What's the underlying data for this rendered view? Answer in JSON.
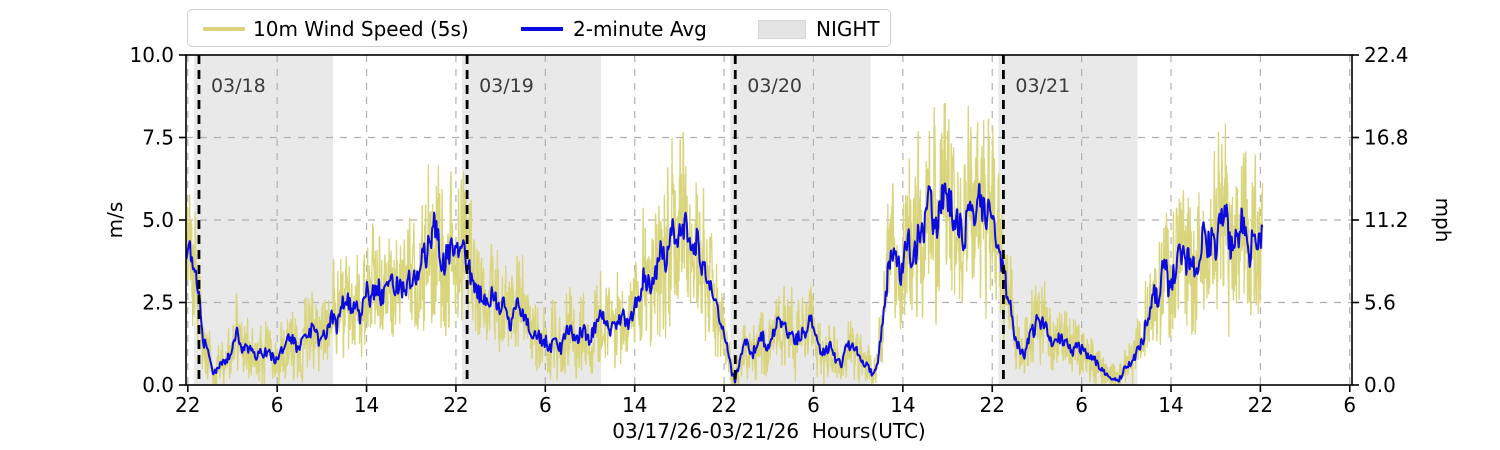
{
  "ui": {
    "legend": {
      "series_5s_label": "10m Wind Speed (5s)",
      "series_avg_label": "2-minute Avg",
      "night_label": "NIGHT"
    }
  },
  "colors": {
    "wind_5s": "#d9d57c",
    "wind_avg": "#0b0be0",
    "night_band": "#e9e9e9",
    "grid": "#b0b0b0",
    "day_line": "#000000",
    "day_label": "#3b3b3b",
    "frame": "#000000",
    "text": "#000000"
  },
  "chart_data": {
    "type": "line",
    "title": "",
    "xlabel": "03/17/26-03/21/26  Hours(UTC)",
    "ylabel_left": "m/s",
    "ylabel_right": "mph",
    "ylim_left": [
      0,
      10
    ],
    "ylim_right": [
      0,
      22.4
    ],
    "left_tick_values": [
      0.0,
      2.5,
      5.0,
      7.5,
      10.0
    ],
    "left_tick_labels": [
      "0.0",
      "2.5",
      "5.0",
      "7.5",
      "10.0"
    ],
    "right_tick_labels": [
      "0.0",
      "5.6",
      "11.2",
      "16.8",
      "22.4"
    ],
    "y_gridlines": [
      2.5,
      5.0,
      7.5
    ],
    "x_domain_hours": [
      -1.16,
      103.2
    ],
    "x_tick_start_hour": -1,
    "x_tick_step_hours": 8,
    "x_tick_labels": [
      "22",
      "6",
      "14",
      "22",
      "6",
      "14",
      "22",
      "6",
      "14",
      "22",
      "6",
      "14",
      "22",
      "6"
    ],
    "grid": true,
    "legend_position": "top-left-outside",
    "day_lines": [
      {
        "hour": 0,
        "label": "03/18"
      },
      {
        "hour": 24,
        "label": "03/19"
      },
      {
        "hour": 48,
        "label": "03/20"
      },
      {
        "hour": 72,
        "label": "03/21"
      }
    ],
    "night_bands_hours": [
      [
        -0.45,
        12.0
      ],
      [
        23.55,
        36.0
      ],
      [
        47.55,
        60.1
      ],
      [
        71.55,
        84.0
      ]
    ],
    "data_start_hour": -1.16,
    "data_end_hour": 95.2,
    "series": [
      {
        "name": "10m Wind Speed (5s)",
        "role": "gust-envelope-of-avg",
        "sample_step_hours": 0.013
      },
      {
        "name": "2-minute Avg",
        "role": "average",
        "sample_step_hours": 0.033
      }
    ],
    "avg_keyframes_hour_ms": [
      [
        -1.16,
        3.5
      ],
      [
        -1.0,
        3.9
      ],
      [
        -0.6,
        3.4
      ],
      [
        -0.3,
        3.0
      ],
      [
        0,
        2.5
      ],
      [
        0.4,
        1.6
      ],
      [
        0.8,
        1.0
      ],
      [
        1.3,
        0.55
      ],
      [
        1.8,
        0.4
      ],
      [
        2.3,
        0.75
      ],
      [
        2.8,
        0.95
      ],
      [
        3.4,
        1.35
      ],
      [
        3.8,
        1.0
      ],
      [
        4.3,
        1.3
      ],
      [
        4.8,
        1.15
      ],
      [
        5.3,
        0.8
      ],
      [
        5.8,
        0.95
      ],
      [
        6.3,
        1.1
      ],
      [
        6.8,
        0.85
      ],
      [
        7.3,
        1.05
      ],
      [
        7.8,
        1.2
      ],
      [
        8.3,
        1.3
      ],
      [
        8.8,
        1.1
      ],
      [
        9.3,
        1.3
      ],
      [
        9.8,
        1.45
      ],
      [
        10.3,
        1.6
      ],
      [
        10.8,
        1.5
      ],
      [
        11.4,
        1.75
      ],
      [
        12,
        1.9
      ],
      [
        12.5,
        2.1
      ],
      [
        13,
        2.3
      ],
      [
        13.5,
        2.15
      ],
      [
        14,
        2.5
      ],
      [
        14.5,
        2.35
      ],
      [
        15,
        2.65
      ],
      [
        15.5,
        2.5
      ],
      [
        16,
        2.8
      ],
      [
        16.5,
        2.6
      ],
      [
        17,
        2.95
      ],
      [
        17.5,
        2.8
      ],
      [
        18,
        3.1
      ],
      [
        18.5,
        3.0
      ],
      [
        19,
        3.3
      ],
      [
        19.5,
        3.55
      ],
      [
        20,
        3.8
      ],
      [
        20.4,
        4.5
      ],
      [
        20.8,
        4.1
      ],
      [
        21.2,
        4.4
      ],
      [
        21.6,
        3.9
      ],
      [
        22,
        4.15
      ],
      [
        22.5,
        3.8
      ],
      [
        23,
        3.6
      ],
      [
        23.5,
        3.85
      ],
      [
        24,
        3.4
      ],
      [
        24.5,
        3.0
      ],
      [
        25,
        2.85
      ],
      [
        25.5,
        2.6
      ],
      [
        26,
        2.45
      ],
      [
        26.5,
        2.55
      ],
      [
        27,
        2.2
      ],
      [
        27.5,
        2.05
      ],
      [
        28,
        1.9
      ],
      [
        28.5,
        2.1
      ],
      [
        29,
        1.8
      ],
      [
        29.5,
        1.65
      ],
      [
        30,
        1.5
      ],
      [
        30.5,
        1.35
      ],
      [
        31,
        1.45
      ],
      [
        31.5,
        1.25
      ],
      [
        32,
        1.5
      ],
      [
        32.5,
        1.3
      ],
      [
        33,
        1.6
      ],
      [
        33.5,
        1.4
      ],
      [
        34,
        1.5
      ],
      [
        34.5,
        1.65
      ],
      [
        35,
        1.5
      ],
      [
        35.5,
        1.6
      ],
      [
        36,
        1.8
      ],
      [
        36.5,
        1.6
      ],
      [
        37,
        1.9
      ],
      [
        37.5,
        1.7
      ],
      [
        38,
        2.0
      ],
      [
        38.5,
        1.85
      ],
      [
        39,
        2.2
      ],
      [
        39.5,
        2.6
      ],
      [
        40,
        3.0
      ],
      [
        40.5,
        3.4
      ],
      [
        41,
        3.8
      ],
      [
        41.5,
        4.2
      ],
      [
        42,
        4.0
      ],
      [
        42.5,
        4.35
      ],
      [
        43,
        4.1
      ],
      [
        43.5,
        4.5
      ],
      [
        44,
        4.3
      ],
      [
        44.4,
        4.9
      ],
      [
        44.8,
        4.3
      ],
      [
        45.2,
        3.8
      ],
      [
        45.6,
        3.2
      ],
      [
        46,
        2.6
      ],
      [
        46.5,
        2.0
      ],
      [
        47,
        1.5
      ],
      [
        47.4,
        1.0
      ],
      [
        47.7,
        0.35
      ],
      [
        48,
        0.15
      ],
      [
        48.3,
        0.7
      ],
      [
        48.7,
        1.0
      ],
      [
        49,
        1.2
      ],
      [
        49.5,
        0.9
      ],
      [
        50,
        1.1
      ],
      [
        50.5,
        1.35
      ],
      [
        51,
        1.2
      ],
      [
        51.5,
        1.5
      ],
      [
        52,
        1.7
      ],
      [
        52.5,
        1.85
      ],
      [
        53,
        1.6
      ],
      [
        53.5,
        1.4
      ],
      [
        54,
        1.6
      ],
      [
        54.6,
        1.85
      ],
      [
        55,
        1.7
      ],
      [
        55.5,
        1.3
      ],
      [
        56,
        1.1
      ],
      [
        56.5,
        1.3
      ],
      [
        57,
        0.85
      ],
      [
        57.5,
        0.65
      ],
      [
        58,
        1.0
      ],
      [
        58.5,
        1.15
      ],
      [
        59,
        0.9
      ],
      [
        59.5,
        0.7
      ],
      [
        60,
        0.5
      ],
      [
        60.4,
        0.3
      ],
      [
        60.8,
        0.85
      ],
      [
        61.2,
        1.8
      ],
      [
        61.6,
        3.0
      ],
      [
        62,
        3.6
      ],
      [
        62.5,
        3.9
      ],
      [
        63,
        3.7
      ],
      [
        63.5,
        4.2
      ],
      [
        64,
        4.0
      ],
      [
        64.5,
        4.4
      ],
      [
        65,
        4.8
      ],
      [
        65.3,
        5.6
      ],
      [
        65.7,
        5.0
      ],
      [
        66,
        5.3
      ],
      [
        66.5,
        5.8
      ],
      [
        67,
        5.2
      ],
      [
        67.3,
        6.0
      ],
      [
        67.7,
        5.2
      ],
      [
        68,
        5.5
      ],
      [
        68.5,
        4.9
      ],
      [
        69,
        5.4
      ],
      [
        69.5,
        5.0
      ],
      [
        70,
        5.3
      ],
      [
        70.5,
        4.7
      ],
      [
        71,
        5.1
      ],
      [
        71.5,
        4.6
      ],
      [
        72,
        3.4
      ],
      [
        72.3,
        2.6
      ],
      [
        72.7,
        1.9
      ],
      [
        73,
        1.3
      ],
      [
        73.5,
        0.95
      ],
      [
        74,
        1.2
      ],
      [
        74.6,
        1.8
      ],
      [
        75.1,
        2.25
      ],
      [
        75.5,
        1.95
      ],
      [
        76,
        1.6
      ],
      [
        76.5,
        1.45
      ],
      [
        77,
        1.6
      ],
      [
        77.5,
        1.3
      ],
      [
        78,
        1.15
      ],
      [
        78.5,
        1.25
      ],
      [
        79,
        1.0
      ],
      [
        79.5,
        0.85
      ],
      [
        80,
        0.9
      ],
      [
        80.5,
        0.6
      ],
      [
        81,
        0.4
      ],
      [
        81.5,
        0.2
      ],
      [
        82,
        0.1
      ],
      [
        82.5,
        0.2
      ],
      [
        83,
        0.45
      ],
      [
        83.5,
        0.7
      ],
      [
        84,
        1.0
      ],
      [
        84.5,
        1.5
      ],
      [
        85,
        2.0
      ],
      [
        85.5,
        2.6
      ],
      [
        86,
        3.0
      ],
      [
        86.5,
        3.4
      ],
      [
        87,
        3.2
      ],
      [
        87.5,
        3.7
      ],
      [
        88,
        3.5
      ],
      [
        88.5,
        4.0
      ],
      [
        89,
        3.8
      ],
      [
        89.5,
        4.3
      ],
      [
        90,
        4.1
      ],
      [
        90.5,
        4.5
      ],
      [
        91,
        4.25
      ],
      [
        91.5,
        5.2
      ],
      [
        92,
        4.6
      ],
      [
        92.5,
        4.9
      ],
      [
        93,
        4.4
      ],
      [
        93.5,
        4.7
      ],
      [
        94,
        4.2
      ],
      [
        94.5,
        4.6
      ],
      [
        95.2,
        4.7
      ]
    ]
  }
}
